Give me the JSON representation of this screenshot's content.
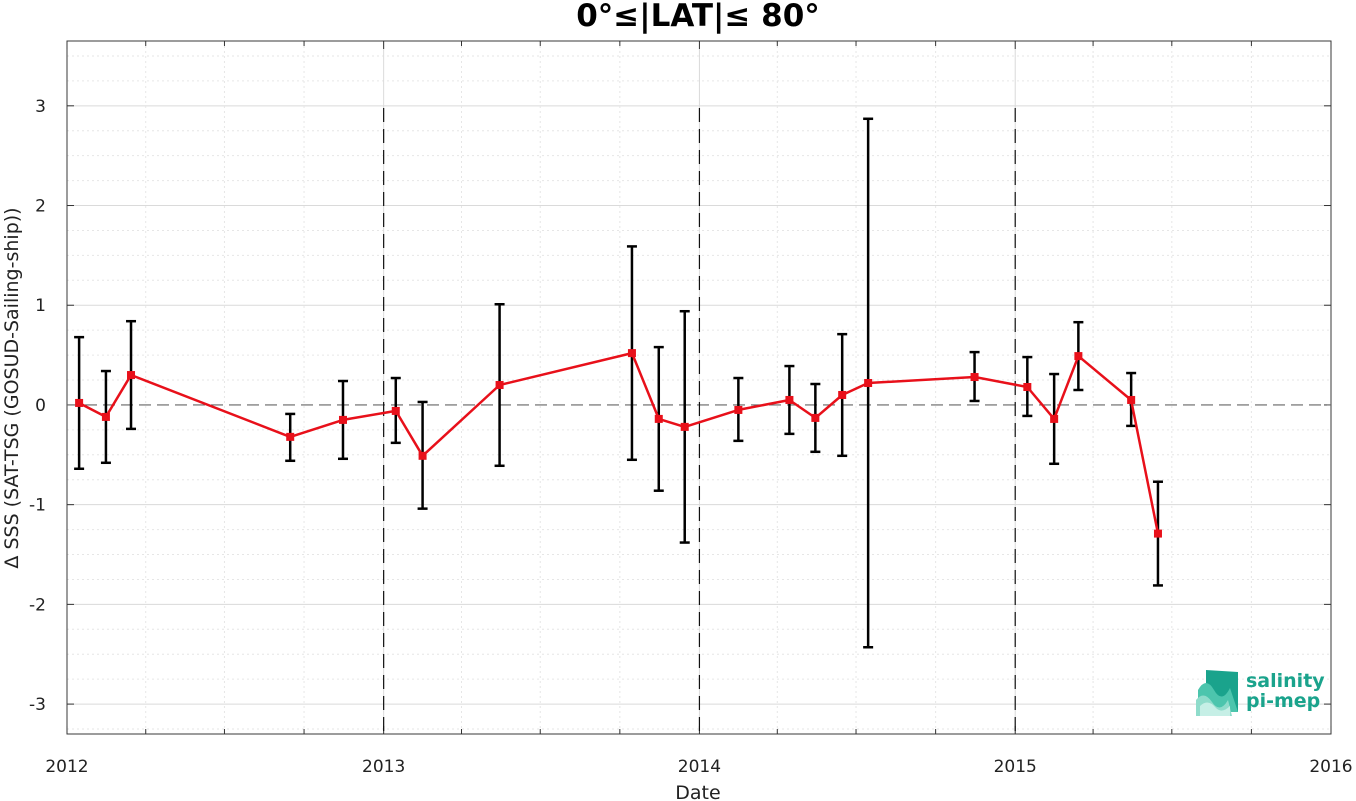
{
  "chart_data": {
    "type": "line",
    "title": "0°≤|LAT|≤ 80°",
    "xlabel": "Date",
    "ylabel": "Δ SSS (SAT-TSG (GOSUD-Sailing-ship))",
    "xlim": [
      "2012-01-01",
      "2016-01-01"
    ],
    "ylim": [
      -3.3,
      3.65
    ],
    "x_ticks": [
      "2012",
      "2013",
      "2014",
      "2015",
      "2016"
    ],
    "y_ticks": [
      -3,
      -2,
      -1,
      0,
      1,
      2,
      3
    ],
    "y_tick_labels": [
      "-3",
      "-2",
      "-1",
      "0",
      "1",
      "2",
      "3"
    ],
    "grid": true,
    "reference_line": 0,
    "year_separators": [
      "2013-01-01",
      "2014-01-01",
      "2015-01-01"
    ],
    "series": [
      {
        "color": "#e8101a",
        "marker": "square",
        "error_bar_color": "#000000",
        "points": [
          {
            "x": "2012-01-15",
            "y": 0.02,
            "low": -0.64,
            "high": 0.68
          },
          {
            "x": "2012-02-15",
            "y": -0.12,
            "low": -0.58,
            "high": 0.34
          },
          {
            "x": "2012-03-15",
            "y": 0.3,
            "low": -0.24,
            "high": 0.84
          },
          {
            "x": "2012-09-15",
            "y": -0.32,
            "low": -0.56,
            "high": -0.09
          },
          {
            "x": "2012-11-15",
            "y": -0.15,
            "low": -0.54,
            "high": 0.24
          },
          {
            "x": "2013-01-15",
            "y": -0.06,
            "low": -0.38,
            "high": 0.27
          },
          {
            "x": "2013-02-15",
            "y": -0.51,
            "low": -1.04,
            "high": 0.03
          },
          {
            "x": "2013-05-15",
            "y": 0.2,
            "low": -0.61,
            "high": 1.01
          },
          {
            "x": "2013-10-15",
            "y": 0.52,
            "low": -0.55,
            "high": 1.59
          },
          {
            "x": "2013-11-15",
            "y": -0.14,
            "low": -0.86,
            "high": 0.58
          },
          {
            "x": "2013-12-15",
            "y": -0.22,
            "low": -1.38,
            "high": 0.94
          },
          {
            "x": "2014-02-15",
            "y": -0.05,
            "low": -0.36,
            "high": 0.27
          },
          {
            "x": "2014-04-15",
            "y": 0.05,
            "low": -0.29,
            "high": 0.39
          },
          {
            "x": "2014-05-15",
            "y": -0.13,
            "low": -0.47,
            "high": 0.21
          },
          {
            "x": "2014-06-15",
            "y": 0.1,
            "low": -0.51,
            "high": 0.71
          },
          {
            "x": "2014-07-15",
            "y": 0.22,
            "low": -2.43,
            "high": 2.87
          },
          {
            "x": "2014-11-15",
            "y": 0.28,
            "low": 0.04,
            "high": 0.53
          },
          {
            "x": "2015-01-15",
            "y": 0.18,
            "low": -0.11,
            "high": 0.48
          },
          {
            "x": "2015-02-15",
            "y": -0.14,
            "low": -0.59,
            "high": 0.31
          },
          {
            "x": "2015-03-15",
            "y": 0.49,
            "low": 0.15,
            "high": 0.83
          },
          {
            "x": "2015-05-15",
            "y": 0.05,
            "low": -0.21,
            "high": 0.32
          },
          {
            "x": "2015-06-15",
            "y": -1.29,
            "low": -1.81,
            "high": -0.77
          }
        ]
      }
    ]
  },
  "logo": {
    "line1": "salinity",
    "line2": "pi-mep",
    "icon": "salinity-wave-icon",
    "color": "#1aa38c"
  }
}
